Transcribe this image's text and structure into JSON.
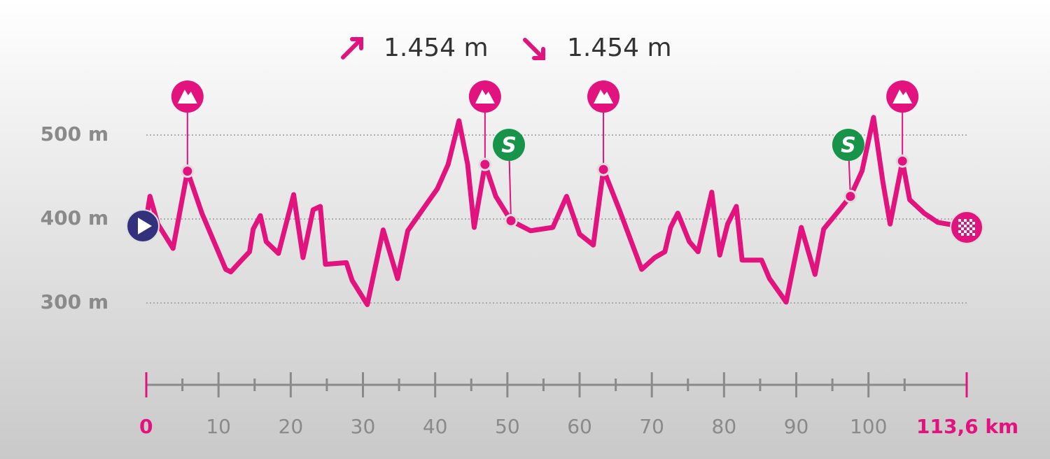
{
  "chart_data": {
    "type": "line",
    "ascent": "1.454 m",
    "descent": "1.454 m",
    "color": "#e2137e",
    "grid": true,
    "xlim": [
      0,
      113.6
    ],
    "xticks": [
      0,
      10,
      20,
      30,
      40,
      50,
      60,
      70,
      80,
      90,
      100,
      {
        "value": 113.6,
        "label": "113,6 km"
      }
    ],
    "xminorticks": [
      5,
      15,
      25,
      35,
      45,
      55,
      65,
      75,
      85,
      95,
      105
    ],
    "ylim": [
      260,
      560
    ],
    "yticks": [
      {
        "value": 300,
        "label": "300 m"
      },
      {
        "value": 400,
        "label": "400 m"
      },
      {
        "value": 500,
        "label": "500 m"
      }
    ],
    "x": [
      0,
      0.5,
      1.6,
      3.7,
      5.7,
      7.7,
      11.0,
      11.7,
      13.2,
      14.3,
      14.8,
      15.8,
      16.6,
      18.3,
      20.4,
      21.7,
      23.1,
      24.1,
      24.8,
      27.7,
      28.5,
      30.6,
      32.8,
      34.8,
      36.2,
      38.9,
      40.3,
      41.8,
      43.3,
      44.5,
      45.4,
      46.9,
      48.4,
      50.5,
      53.2,
      56.3,
      58.2,
      60.0,
      61.9,
      63.3,
      65.5,
      68.6,
      70.4,
      71.8,
      72.6,
      73.6,
      75.2,
      76.4,
      78.3,
      79.4,
      80.5,
      81.7,
      82.5,
      85.2,
      86.3,
      88.6,
      90.7,
      92.6,
      93.8,
      96.0,
      97.5,
      99.1,
      100.7,
      102.0,
      103.0,
      104.7,
      105.7,
      107.7,
      109.6,
      113.6
    ],
    "values": [
      400,
      427,
      394,
      365,
      457,
      407,
      340,
      337,
      351,
      361,
      388,
      404,
      373,
      359,
      429,
      354,
      411,
      415,
      346,
      348,
      327,
      298,
      387,
      329,
      386,
      419,
      436,
      465,
      517,
      465,
      390,
      465,
      427,
      398,
      386,
      390,
      427,
      382,
      369,
      459,
      411,
      340,
      354,
      361,
      390,
      407,
      373,
      361,
      432,
      357,
      394,
      415,
      351,
      351,
      329,
      301,
      390,
      334,
      388,
      411,
      427,
      457,
      521,
      444,
      394,
      469,
      423,
      407,
      396,
      390
    ],
    "climbs": {
      "x": [
        5.7,
        46.9,
        63.3,
        104.7
      ],
      "values": [
        457,
        465,
        459,
        469
      ]
    },
    "sprints": {
      "label": "S",
      "x": [
        50.5,
        97.5
      ],
      "values": [
        398,
        427
      ]
    }
  }
}
